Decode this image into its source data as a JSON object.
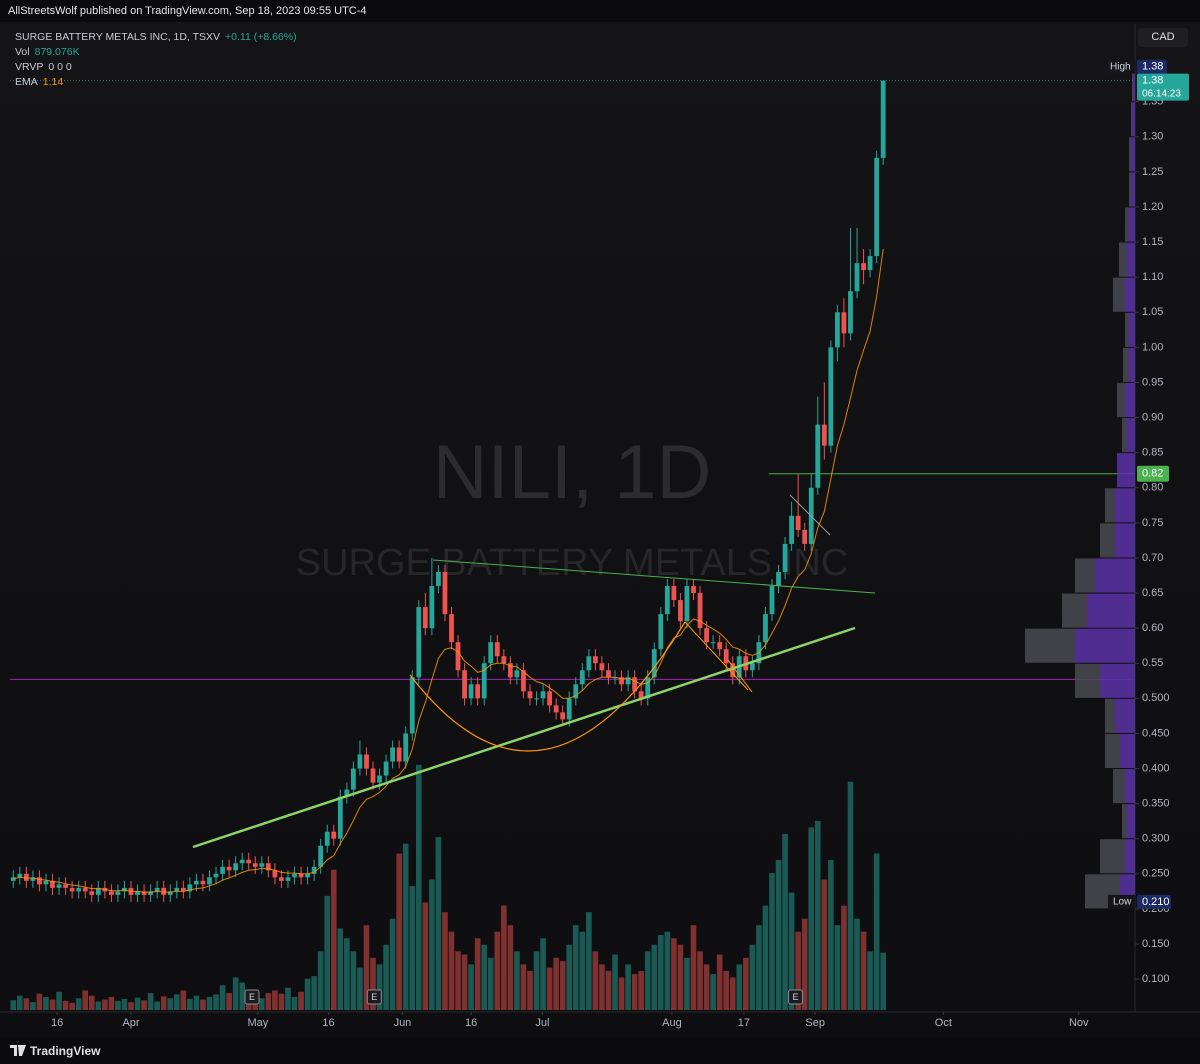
{
  "header": {
    "byline": "AllStreetsWolf published on TradingView.com, Sep 18, 2023 09:55 UTC-4"
  },
  "chart_data": {
    "type": "candlestick",
    "title": "SURGE BATTERY METALS INC, 1D, TSXV",
    "change": "+0.11 (+8.66%)",
    "watermark": "NILI, 1D",
    "watermark_subtitle": "SURGE BATTERY METALS INC",
    "currency": "CAD",
    "volume_legend": {
      "name": "Vol",
      "value_label": "879.076K"
    },
    "vrvp_legend": {
      "name": "VRVP",
      "value_label": "0 0 0"
    },
    "ema_legend": {
      "name": "EMA",
      "value": 1.14
    },
    "up_color": "#26a69a",
    "down_color": "#ef5350",
    "ema_color": "#ff9800",
    "open": [
      0.24,
      0.245,
      0.25,
      0.24,
      0.245,
      0.235,
      0.24,
      0.23,
      0.235,
      0.23,
      0.225,
      0.23,
      0.225,
      0.22,
      0.23,
      0.225,
      0.22,
      0.225,
      0.23,
      0.22,
      0.225,
      0.22,
      0.225,
      0.23,
      0.22,
      0.225,
      0.23,
      0.225,
      0.235,
      0.24,
      0.235,
      0.245,
      0.25,
      0.26,
      0.255,
      0.265,
      0.27,
      0.265,
      0.26,
      0.265,
      0.255,
      0.245,
      0.24,
      0.245,
      0.25,
      0.245,
      0.25,
      0.26,
      0.29,
      0.31,
      0.3,
      0.36,
      0.37,
      0.4,
      0.42,
      0.4,
      0.38,
      0.39,
      0.41,
      0.43,
      0.41,
      0.45,
      0.53,
      0.63,
      0.6,
      0.66,
      0.68,
      0.62,
      0.58,
      0.54,
      0.5,
      0.52,
      0.5,
      0.55,
      0.58,
      0.56,
      0.55,
      0.53,
      0.54,
      0.51,
      0.5,
      0.5,
      0.51,
      0.49,
      0.48,
      0.47,
      0.5,
      0.52,
      0.54,
      0.56,
      0.55,
      0.54,
      0.53,
      0.53,
      0.52,
      0.53,
      0.51,
      0.5,
      0.53,
      0.57,
      0.62,
      0.66,
      0.64,
      0.61,
      0.66,
      0.65,
      0.6,
      0.58,
      0.58,
      0.57,
      0.55,
      0.53,
      0.56,
      0.54,
      0.55,
      0.58,
      0.62,
      0.66,
      0.68,
      0.72,
      0.76,
      0.74,
      0.72,
      0.8,
      0.89,
      0.86,
      1,
      1.05,
      1.02,
      1.08,
      1.12,
      1.11,
      1.13,
      1.27
    ],
    "high": [
      0.255,
      0.26,
      0.26,
      0.255,
      0.255,
      0.25,
      0.25,
      0.245,
      0.245,
      0.24,
      0.24,
      0.24,
      0.235,
      0.24,
      0.24,
      0.235,
      0.235,
      0.24,
      0.24,
      0.235,
      0.235,
      0.235,
      0.24,
      0.24,
      0.235,
      0.24,
      0.24,
      0.245,
      0.25,
      0.25,
      0.255,
      0.26,
      0.27,
      0.27,
      0.275,
      0.28,
      0.28,
      0.275,
      0.275,
      0.275,
      0.265,
      0.255,
      0.255,
      0.26,
      0.26,
      0.26,
      0.27,
      0.3,
      0.32,
      0.32,
      0.37,
      0.38,
      0.41,
      0.44,
      0.43,
      0.41,
      0.4,
      0.42,
      0.44,
      0.44,
      0.46,
      0.54,
      0.64,
      0.65,
      0.7,
      0.69,
      0.69,
      0.63,
      0.59,
      0.55,
      0.53,
      0.53,
      0.56,
      0.59,
      0.59,
      0.57,
      0.56,
      0.55,
      0.55,
      0.52,
      0.51,
      0.52,
      0.52,
      0.5,
      0.49,
      0.51,
      0.53,
      0.55,
      0.57,
      0.57,
      0.56,
      0.55,
      0.54,
      0.54,
      0.54,
      0.54,
      0.52,
      0.54,
      0.58,
      0.63,
      0.67,
      0.67,
      0.65,
      0.67,
      0.67,
      0.66,
      0.61,
      0.59,
      0.59,
      0.58,
      0.56,
      0.57,
      0.57,
      0.56,
      0.59,
      0.63,
      0.67,
      0.69,
      0.73,
      0.78,
      0.82,
      0.75,
      0.82,
      0.93,
      0.95,
      1.01,
      1.06,
      1.07,
      1.17,
      1.17,
      1.14,
      1.14,
      1.28,
      1.38
    ],
    "low": [
      0.23,
      0.235,
      0.23,
      0.23,
      0.225,
      0.225,
      0.22,
      0.22,
      0.22,
      0.215,
      0.215,
      0.215,
      0.21,
      0.21,
      0.215,
      0.21,
      0.21,
      0.215,
      0.21,
      0.21,
      0.21,
      0.21,
      0.215,
      0.21,
      0.21,
      0.215,
      0.215,
      0.215,
      0.225,
      0.225,
      0.225,
      0.235,
      0.24,
      0.245,
      0.245,
      0.255,
      0.255,
      0.25,
      0.25,
      0.245,
      0.235,
      0.23,
      0.23,
      0.235,
      0.235,
      0.235,
      0.24,
      0.25,
      0.28,
      0.29,
      0.29,
      0.35,
      0.36,
      0.39,
      0.39,
      0.37,
      0.37,
      0.38,
      0.4,
      0.4,
      0.4,
      0.44,
      0.52,
      0.59,
      0.59,
      0.65,
      0.61,
      0.57,
      0.53,
      0.49,
      0.49,
      0.49,
      0.49,
      0.54,
      0.55,
      0.54,
      0.52,
      0.52,
      0.5,
      0.49,
      0.49,
      0.49,
      0.48,
      0.47,
      0.46,
      0.46,
      0.49,
      0.51,
      0.53,
      0.54,
      0.53,
      0.52,
      0.52,
      0.51,
      0.51,
      0.5,
      0.49,
      0.49,
      0.52,
      0.56,
      0.61,
      0.63,
      0.6,
      0.6,
      0.64,
      0.59,
      0.57,
      0.57,
      0.56,
      0.54,
      0.52,
      0.52,
      0.53,
      0.53,
      0.54,
      0.57,
      0.61,
      0.65,
      0.67,
      0.71,
      0.73,
      0.71,
      0.71,
      0.79,
      0.84,
      0.85,
      0.98,
      1,
      1.01,
      1.07,
      1.09,
      1.1,
      1.12,
      1.26
    ],
    "close": [
      0.245,
      0.25,
      0.24,
      0.245,
      0.235,
      0.24,
      0.23,
      0.235,
      0.23,
      0.225,
      0.23,
      0.225,
      0.22,
      0.23,
      0.225,
      0.22,
      0.225,
      0.23,
      0.22,
      0.225,
      0.22,
      0.225,
      0.23,
      0.22,
      0.225,
      0.23,
      0.225,
      0.235,
      0.24,
      0.235,
      0.245,
      0.25,
      0.26,
      0.255,
      0.265,
      0.27,
      0.265,
      0.26,
      0.265,
      0.255,
      0.245,
      0.24,
      0.245,
      0.25,
      0.245,
      0.25,
      0.26,
      0.29,
      0.31,
      0.3,
      0.36,
      0.37,
      0.4,
      0.42,
      0.4,
      0.38,
      0.39,
      0.41,
      0.43,
      0.41,
      0.45,
      0.53,
      0.63,
      0.6,
      0.66,
      0.68,
      0.62,
      0.58,
      0.54,
      0.5,
      0.52,
      0.5,
      0.55,
      0.58,
      0.56,
      0.55,
      0.53,
      0.54,
      0.51,
      0.5,
      0.5,
      0.51,
      0.49,
      0.48,
      0.47,
      0.5,
      0.52,
      0.54,
      0.56,
      0.55,
      0.54,
      0.53,
      0.53,
      0.52,
      0.53,
      0.51,
      0.5,
      0.53,
      0.57,
      0.62,
      0.66,
      0.64,
      0.61,
      0.66,
      0.65,
      0.6,
      0.58,
      0.58,
      0.57,
      0.55,
      0.53,
      0.56,
      0.54,
      0.55,
      0.58,
      0.62,
      0.66,
      0.68,
      0.72,
      0.76,
      0.74,
      0.72,
      0.8,
      0.89,
      0.86,
      1,
      1.05,
      1.02,
      1.08,
      1.12,
      1.11,
      1.13,
      1.27,
      1.38
    ],
    "volume": [
      150000,
      220000,
      180000,
      120000,
      250000,
      200000,
      160000,
      280000,
      140000,
      110000,
      180000,
      300000,
      220000,
      130000,
      160000,
      200000,
      140000,
      170000,
      120000,
      190000,
      150000,
      260000,
      130000,
      210000,
      180000,
      240000,
      300000,
      170000,
      220000,
      160000,
      200000,
      240000,
      380000,
      260000,
      500000,
      420000,
      300000,
      220000,
      180000,
      260000,
      300000,
      250000,
      340000,
      200000,
      280000,
      480000,
      520000,
      900000,
      1750000,
      2150000,
      1250000,
      1100000,
      900000,
      650000,
      1300000,
      800000,
      700000,
      1000000,
      1400000,
      2400000,
      2550000,
      1900000,
      3760000,
      1650000,
      2000000,
      2650000,
      1500000,
      1200000,
      900000,
      850000,
      700000,
      1100000,
      1000000,
      800000,
      1200000,
      1600000,
      1300000,
      900000,
      700000,
      600000,
      900000,
      1100000,
      650000,
      800000,
      750000,
      1000000,
      1300000,
      1200000,
      1500000,
      900000,
      700000,
      600000,
      850000,
      500000,
      700000,
      550000,
      600000,
      900000,
      1000000,
      1150000,
      1200000,
      1100000,
      1000000,
      800000,
      1300000,
      900000,
      700000,
      550000,
      850000,
      600000,
      500000,
      700000,
      800000,
      1000000,
      1300000,
      1600000,
      2100000,
      2300000,
      2700000,
      1800000,
      1200000,
      1400000,
      2800000,
      2900000,
      2000000,
      2300000,
      1300000,
      1600000,
      3500000,
      1400000,
      1200000,
      900000,
      2400000,
      879076
    ],
    "ema": [
      0.243,
      0.245,
      0.244,
      0.244,
      0.242,
      0.241,
      0.239,
      0.238,
      0.236,
      0.234,
      0.233,
      0.231,
      0.229,
      0.229,
      0.228,
      0.226,
      0.226,
      0.227,
      0.225,
      0.225,
      0.224,
      0.224,
      0.225,
      0.224,
      0.224,
      0.225,
      0.225,
      0.227,
      0.229,
      0.23,
      0.233,
      0.236,
      0.241,
      0.244,
      0.248,
      0.252,
      0.255,
      0.256,
      0.258,
      0.257,
      0.255,
      0.252,
      0.251,
      0.251,
      0.25,
      0.25,
      0.252,
      0.26,
      0.27,
      0.276,
      0.293,
      0.308,
      0.326,
      0.345,
      0.356,
      0.36,
      0.366,
      0.375,
      0.386,
      0.391,
      0.403,
      0.428,
      0.468,
      0.494,
      0.527,
      0.557,
      0.57,
      0.572,
      0.566,
      0.553,
      0.546,
      0.537,
      0.54,
      0.548,
      0.55,
      0.55,
      0.546,
      0.545,
      0.538,
      0.53,
      0.524,
      0.521,
      0.515,
      0.508,
      0.5,
      0.5,
      0.504,
      0.511,
      0.521,
      0.527,
      0.53,
      0.53,
      0.53,
      0.528,
      0.529,
      0.525,
      0.52,
      0.522,
      0.532,
      0.55,
      0.572,
      0.586,
      0.59,
      0.604,
      0.613,
      0.61,
      0.604,
      0.599,
      0.593,
      0.584,
      0.573,
      0.57,
      0.564,
      0.561,
      0.565,
      0.576,
      0.593,
      0.61,
      0.632,
      0.657,
      0.674,
      0.683,
      0.706,
      0.743,
      0.766,
      0.813,
      0.86,
      0.89,
      0.928,
      0.967,
      0.996,
      1.023,
      1.072,
      1.14
    ],
    "xlim": [
      -0.5,
      171.5
    ],
    "xticks": [
      {
        "value": 6.7,
        "label": "16"
      },
      {
        "value": 18,
        "label": "Apr"
      },
      {
        "value": 37.4,
        "label": "May"
      },
      {
        "value": 48.2,
        "label": "16"
      },
      {
        "value": 59.5,
        "label": "Jun"
      },
      {
        "value": 70,
        "label": "16"
      },
      {
        "value": 80.9,
        "label": "Jul"
      },
      {
        "value": 100.7,
        "label": "Aug"
      },
      {
        "value": 111.7,
        "label": "17"
      },
      {
        "value": 122.6,
        "label": "Sep"
      },
      {
        "value": 142.2,
        "label": "Oct"
      },
      {
        "value": 162.9,
        "label": "Nov"
      }
    ],
    "ylim": [
      0.056,
      1.455
    ],
    "yticks": [
      {
        "value": 0.1,
        "label": "0.100"
      },
      {
        "value": 0.15,
        "label": "0.150"
      },
      {
        "value": 0.2,
        "label": "0.200"
      },
      {
        "value": 0.25,
        "label": "0.250"
      },
      {
        "value": 0.3,
        "label": "0.300"
      },
      {
        "value": 0.35,
        "label": "0.350"
      },
      {
        "value": 0.4,
        "label": "0.400"
      },
      {
        "value": 0.45,
        "label": "0.450"
      },
      {
        "value": 0.5,
        "label": "0.500"
      },
      0.55,
      {
        "value": 0.6,
        "label": "0.60"
      },
      0.65,
      {
        "value": 0.7,
        "label": "0.70"
      },
      0.75,
      {
        "value": 0.8,
        "label": "0.80"
      },
      0.85,
      {
        "value": 0.9,
        "label": "0.90"
      },
      0.95,
      {
        "value": 1,
        "label": "1.00"
      },
      1.05,
      {
        "value": 1.1,
        "label": "1.10"
      },
      1.15,
      {
        "value": 1.2,
        "label": "1.20"
      },
      1.25,
      {
        "value": 1.3,
        "label": "1.30"
      },
      1.35
    ],
    "volume_ylim": [
      0,
      4600000
    ],
    "hlines": [
      {
        "value": 0.527,
        "color": "#9c27b0"
      },
      {
        "value": 0.82,
        "color": "#4caf50",
        "from": 115.5
      }
    ],
    "events": [
      {
        "x": 36.5,
        "label": "E"
      },
      {
        "x": 55.2,
        "label": "E"
      },
      {
        "x": 119.6,
        "label": "E"
      }
    ],
    "price_labels": {
      "high": {
        "label": "High",
        "value": 1.38
      },
      "last": {
        "value": 1.38,
        "countdown": "06:14:23"
      },
      "low": {
        "label": "Low",
        "value": {
          "value": 0.21,
          "label": "0.210"
        }
      }
    },
    "vrvp": {
      "bins": [
        0.2,
        0.25,
        0.3,
        0.35,
        0.4,
        0.45,
        0.5,
        0.55,
        0.6,
        0.65,
        0.7,
        0.75,
        0.8,
        0.85,
        0.9,
        0.95,
        1,
        1.05,
        1.1,
        1.15,
        1.2,
        1.25,
        1.3,
        1.35,
        1.4
      ],
      "up": [
        3750000,
        2500000,
        2000000,
        2500000,
        3750000,
        5000000,
        8750000,
        15000000,
        12000000,
        10000000,
        5000000,
        5000000,
        4500000,
        2000000,
        2500000,
        1500000,
        1500000,
        2500000,
        2000000,
        1500000,
        1000000,
        1000000,
        750000,
        500000
      ],
      "down": [
        8750000,
        6250000,
        1250000,
        3000000,
        3750000,
        2500000,
        6250000,
        12500000,
        6250000,
        5000000,
        3750000,
        2500000,
        0,
        1250000,
        2000000,
        1500000,
        1000000,
        3000000,
        2000000,
        1000000,
        500000,
        500000,
        250000,
        250000
      ],
      "xlim": [
        0,
        27500000
      ],
      "up_color": "#5a32a8",
      "down_color": "#4a4a52"
    }
  },
  "footer": {
    "brand": "TradingView"
  }
}
